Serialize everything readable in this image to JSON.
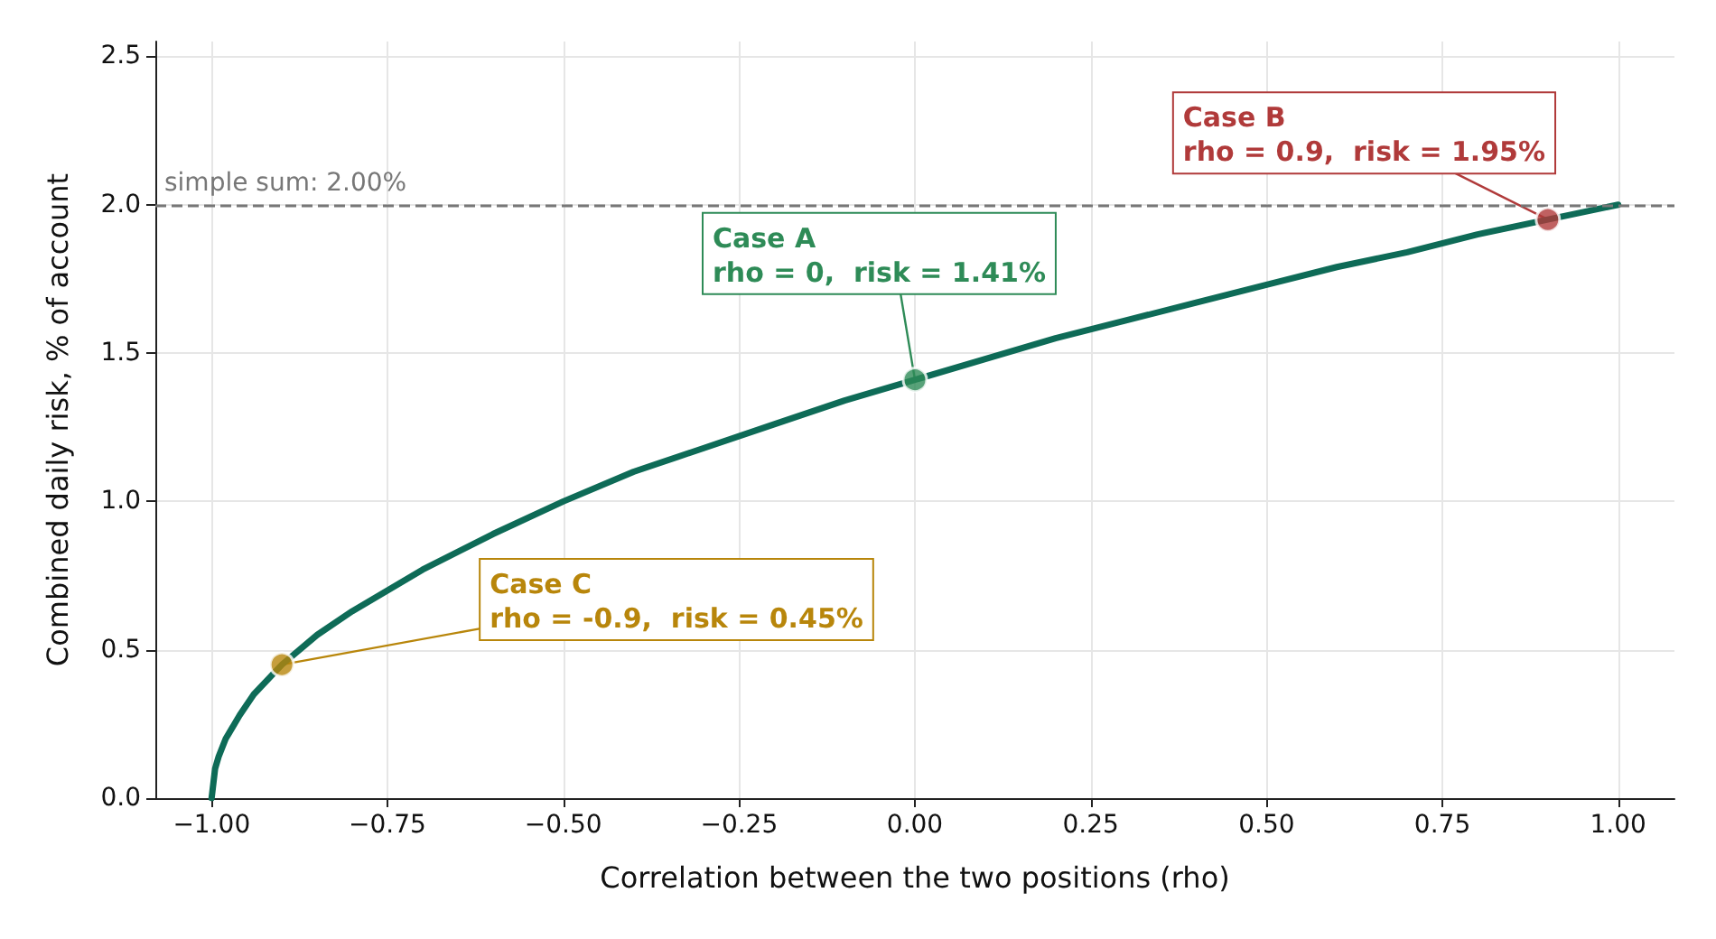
{
  "chart_data": {
    "type": "line",
    "xlabel": "Correlation between the two positions (rho)",
    "ylabel": "Combined daily risk, % of account",
    "xlim": [
      -1.08,
      1.08
    ],
    "ylim": [
      0,
      2.55
    ],
    "xticks": [
      {
        "value": -1,
        "label": "−1.00"
      },
      {
        "value": -0.75,
        "label": "−0.75"
      },
      {
        "value": -0.5,
        "label": "−0.50"
      },
      {
        "value": -0.25,
        "label": "−0.25"
      },
      {
        "value": 0,
        "label": "0.00"
      },
      {
        "value": 0.25,
        "label": "0.25"
      },
      {
        "value": 0.5,
        "label": "0.50"
      },
      {
        "value": 0.75,
        "label": "0.75"
      },
      {
        "value": 1,
        "label": "1.00"
      }
    ],
    "yticks": [
      {
        "value": 0,
        "label": "0.0"
      },
      {
        "value": 0.5,
        "label": "0.5"
      },
      {
        "value": 1,
        "label": "1.0"
      },
      {
        "value": 1.5,
        "label": "1.5"
      },
      {
        "value": 2,
        "label": "2.0"
      },
      {
        "value": 2.5,
        "label": "2.5"
      }
    ],
    "grid": true,
    "series": [
      {
        "color": "#0e6b57",
        "marker": "none",
        "x": [
          -1,
          -0.995,
          -0.99,
          -0.98,
          -0.96,
          -0.94,
          -0.9,
          -0.85,
          -0.8,
          -0.7,
          -0.6,
          -0.5,
          -0.4,
          -0.3,
          -0.2,
          -0.1,
          0,
          0.1,
          0.2,
          0.3,
          0.4,
          0.5,
          0.6,
          0.7,
          0.8,
          0.9,
          1
        ],
        "values": [
          0,
          0.1,
          0.14,
          0.2,
          0.28,
          0.35,
          0.45,
          0.55,
          0.63,
          0.77,
          0.89,
          1.0,
          1.1,
          1.18,
          1.26,
          1.34,
          1.41,
          1.48,
          1.55,
          1.61,
          1.67,
          1.73,
          1.79,
          1.84,
          1.9,
          1.95,
          2.0
        ]
      },
      {
        "type": "scatter",
        "marker": "circle",
        "colors": [
          "#b8860b",
          "#2e8b57",
          "#b03a3a"
        ],
        "x": [
          -0.9,
          0,
          0.9
        ],
        "values": [
          0.45,
          1.41,
          1.95
        ]
      }
    ],
    "ref_lines": [
      {
        "axis": "y",
        "value": 2,
        "label": "simple sum: 2.00%",
        "color": "#777777",
        "line_style": "dashed"
      }
    ],
    "annotations": [
      {
        "text": "Case C\nrho = -0.9,  risk = 0.45%",
        "x": -0.9,
        "y": 0.45
      },
      {
        "text": "Case A\nrho = 0,  risk = 1.41%",
        "x": 0,
        "y": 1.41
      },
      {
        "text": "Case B\nrho = 0.9,  risk = 1.95%",
        "x": 0.9,
        "y": 1.95
      }
    ]
  }
}
